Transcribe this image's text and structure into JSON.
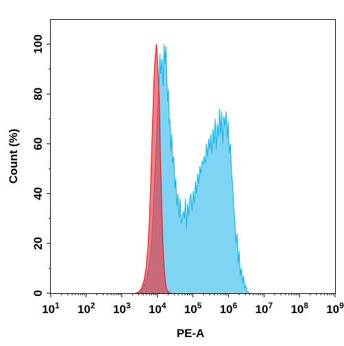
{
  "chart_data": {
    "type": "area",
    "xlabel": "PE-A",
    "ylabel": "Count  (%)",
    "x_scale": "log",
    "xlim": [
      10,
      1000000000
    ],
    "ylim": [
      0,
      110
    ],
    "grid": false,
    "legend": "none",
    "x_ticks": [
      {
        "base": "10",
        "exp": "1",
        "value": 10
      },
      {
        "base": "10",
        "exp": "2",
        "value": 100
      },
      {
        "base": "10",
        "exp": "3",
        "value": 1000
      },
      {
        "base": "10",
        "exp": "4",
        "value": 10000
      },
      {
        "base": "10",
        "exp": "5",
        "value": 100000
      },
      {
        "base": "10",
        "exp": "6",
        "value": 1000000
      },
      {
        "base": "10",
        "exp": "7",
        "value": 10000000
      },
      {
        "base": "10",
        "exp": "8",
        "value": 100000000
      },
      {
        "base": "10",
        "exp": "9",
        "value": 1000000000
      }
    ],
    "y_ticks": [
      "0",
      "20",
      "40",
      "60",
      "80",
      "100"
    ],
    "series": [
      {
        "color": "#1ab3e6",
        "fill": "#7fd3f3",
        "points": [
          [
            2500,
            0
          ],
          [
            3200,
            0.5
          ],
          [
            4000,
            2
          ],
          [
            5000,
            6
          ],
          [
            6000,
            12
          ],
          [
            7000,
            22
          ],
          [
            8000,
            40
          ],
          [
            9000,
            55
          ],
          [
            10000,
            70
          ],
          [
            11000,
            82
          ],
          [
            11800,
            96
          ],
          [
            12500,
            88
          ],
          [
            13500,
            94
          ],
          [
            14500,
            83
          ],
          [
            15500,
            100
          ],
          [
            16500,
            92
          ],
          [
            17500,
            99
          ],
          [
            18500,
            86
          ],
          [
            19500,
            77
          ],
          [
            20500,
            82
          ],
          [
            21500,
            68
          ],
          [
            22500,
            70
          ],
          [
            24000,
            57
          ],
          [
            25500,
            64
          ],
          [
            27000,
            52
          ],
          [
            29000,
            55
          ],
          [
            31000,
            42
          ],
          [
            33000,
            46
          ],
          [
            35500,
            35
          ],
          [
            38000,
            40
          ],
          [
            41000,
            30
          ],
          [
            44000,
            38
          ],
          [
            47000,
            28
          ],
          [
            50000,
            30
          ],
          [
            54000,
            33
          ],
          [
            58000,
            30
          ],
          [
            62000,
            38
          ],
          [
            66000,
            26
          ],
          [
            71000,
            36
          ],
          [
            76000,
            31
          ],
          [
            82000,
            38
          ],
          [
            88000,
            40
          ],
          [
            95000,
            33
          ],
          [
            102000,
            41
          ],
          [
            110000,
            36
          ],
          [
            118000,
            45
          ],
          [
            127000,
            40
          ],
          [
            136000,
            48
          ],
          [
            146000,
            44
          ],
          [
            157000,
            51
          ],
          [
            169000,
            48
          ],
          [
            181000,
            53
          ],
          [
            195000,
            52
          ],
          [
            209000,
            55
          ],
          [
            224000,
            52
          ],
          [
            240000,
            60
          ],
          [
            258000,
            55
          ],
          [
            277000,
            62
          ],
          [
            298000,
            58
          ],
          [
            320000,
            64
          ],
          [
            343000,
            56
          ],
          [
            368000,
            66
          ],
          [
            395000,
            60
          ],
          [
            424000,
            70
          ],
          [
            455000,
            58
          ],
          [
            488000,
            68
          ],
          [
            524000,
            63
          ],
          [
            562000,
            74
          ],
          [
            603000,
            64
          ],
          [
            647000,
            73
          ],
          [
            694000,
            60
          ],
          [
            745000,
            71
          ],
          [
            800000,
            67
          ],
          [
            858000,
            73
          ],
          [
            921000,
            62
          ],
          [
            988000,
            69
          ],
          [
            1060000,
            56
          ],
          [
            1140000,
            60
          ],
          [
            1220000,
            48
          ],
          [
            1310000,
            44
          ],
          [
            1410000,
            34
          ],
          [
            1510000,
            30
          ],
          [
            1620000,
            20
          ],
          [
            1740000,
            24
          ],
          [
            1870000,
            12
          ],
          [
            2010000,
            17
          ],
          [
            2150000,
            7
          ],
          [
            2310000,
            10
          ],
          [
            2480000,
            4
          ],
          [
            2660000,
            7
          ],
          [
            2860000,
            2
          ],
          [
            3070000,
            3
          ],
          [
            3300000,
            1
          ],
          [
            3600000,
            0.5
          ],
          [
            4000000,
            0
          ]
        ]
      },
      {
        "color": "#e8141f",
        "fill": "rgba(255,30,35,0.58)",
        "points": [
          [
            2400,
            0
          ],
          [
            3000,
            0.5
          ],
          [
            3600,
            2
          ],
          [
            4200,
            5
          ],
          [
            4800,
            10
          ],
          [
            5400,
            18
          ],
          [
            6000,
            30
          ],
          [
            6500,
            44
          ],
          [
            7000,
            60
          ],
          [
            7500,
            72
          ],
          [
            8000,
            85
          ],
          [
            8500,
            93
          ],
          [
            9000,
            97
          ],
          [
            9400,
            100
          ],
          [
            9800,
            97
          ],
          [
            10300,
            90
          ],
          [
            10800,
            85
          ],
          [
            11300,
            78
          ],
          [
            11800,
            66
          ],
          [
            12300,
            52
          ],
          [
            12800,
            44
          ],
          [
            13400,
            32
          ],
          [
            14000,
            24
          ],
          [
            14700,
            16
          ],
          [
            15400,
            11
          ],
          [
            16200,
            7
          ],
          [
            17000,
            4
          ],
          [
            18000,
            2
          ],
          [
            19500,
            0.8
          ],
          [
            22000,
            0.2
          ],
          [
            25000,
            0
          ]
        ]
      }
    ]
  }
}
